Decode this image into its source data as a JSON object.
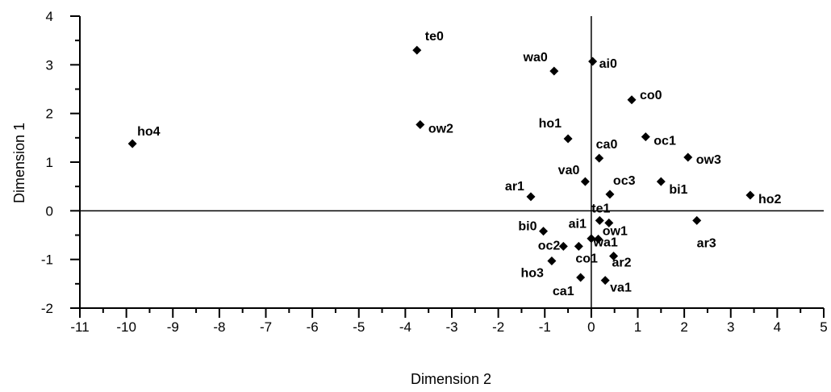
{
  "chart_data": {
    "type": "scatter",
    "xlabel": "Dimension 2",
    "ylabel": "Dimension 1",
    "xlim": [
      -11,
      5
    ],
    "ylim": [
      -2,
      4
    ],
    "x_ticks": [
      "-11",
      "-10",
      "-9",
      "-8",
      "-7",
      "-6",
      "-5",
      "-4",
      "-3",
      "-2",
      "-1",
      "0",
      "1",
      "2",
      "3",
      "4",
      "5"
    ],
    "y_ticks": [
      "-2",
      "-1",
      "0",
      "1",
      "2",
      "3",
      "4"
    ],
    "grid": false,
    "marker_color": "#000000",
    "points": [
      {
        "label": "te0",
        "x": -3.75,
        "y": 3.3
      },
      {
        "label": "wa0",
        "x": -0.8,
        "y": 2.87
      },
      {
        "label": "ai0",
        "x": 0.03,
        "y": 3.07
      },
      {
        "label": "co0",
        "x": 0.87,
        "y": 2.28
      },
      {
        "label": "ho4",
        "x": -9.87,
        "y": 1.38
      },
      {
        "label": "ow2",
        "x": -3.68,
        "y": 1.77
      },
      {
        "label": "ho1",
        "x": -0.5,
        "y": 1.48
      },
      {
        "label": "oc1",
        "x": 1.17,
        "y": 1.52
      },
      {
        "label": "ca0",
        "x": 0.17,
        "y": 1.08
      },
      {
        "label": "ow3",
        "x": 2.08,
        "y": 1.1
      },
      {
        "label": "va0",
        "x": -0.13,
        "y": 0.6
      },
      {
        "label": "bi1",
        "x": 1.5,
        "y": 0.6
      },
      {
        "label": "ar1",
        "x": -1.3,
        "y": 0.29
      },
      {
        "label": "oc3",
        "x": 0.4,
        "y": 0.34
      },
      {
        "label": "ho2",
        "x": 3.42,
        "y": 0.32
      },
      {
        "label": "te1",
        "x": 0.18,
        "y": -0.2
      },
      {
        "label": "ow1",
        "x": 0.38,
        "y": -0.25
      },
      {
        "label": "ar3",
        "x": 2.27,
        "y": -0.2
      },
      {
        "label": "bi0",
        "x": -1.03,
        "y": -0.42
      },
      {
        "label": "ai1",
        "x": 0.0,
        "y": -0.57
      },
      {
        "label": "wa1",
        "x": 0.15,
        "y": -0.58
      },
      {
        "label": "oc2",
        "x": -0.6,
        "y": -0.73
      },
      {
        "label": "co1",
        "x": -0.27,
        "y": -0.73
      },
      {
        "label": "ar2",
        "x": 0.48,
        "y": -0.93
      },
      {
        "label": "ho3",
        "x": -0.85,
        "y": -1.03
      },
      {
        "label": "ca1",
        "x": -0.23,
        "y": -1.37
      },
      {
        "label": "va1",
        "x": 0.3,
        "y": -1.43
      }
    ]
  }
}
